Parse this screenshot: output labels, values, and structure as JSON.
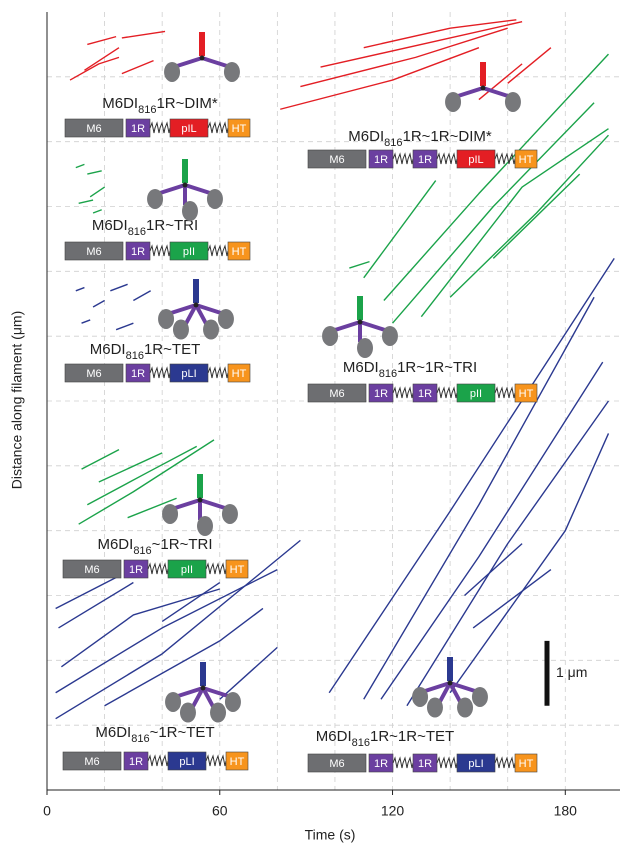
{
  "chart_data": {
    "type": "kymograph",
    "x_label": "Time (s)",
    "y_label": "Distance along filament (μm)",
    "xlim": [
      0,
      199
    ],
    "xticks": [
      0,
      60,
      120,
      180
    ],
    "minor_xticks": [
      20,
      40,
      80,
      100,
      140,
      160
    ],
    "ylim": [
      0,
      12
    ],
    "minor_yticks": [
      1,
      2,
      3,
      4,
      5,
      6,
      7,
      8,
      9,
      10,
      11
    ],
    "grid": true,
    "scale_bar": {
      "value": 1,
      "label": "1 μm"
    },
    "domain_colors": {
      "M6": "#6d6e71",
      "1R": "#6b3fa0",
      "pIL": "#e31e24",
      "pII": "#1ba34a",
      "pLI": "#2b3990",
      "HT": "#f7941d"
    },
    "constructs": [
      {
        "name_parts": [
          "M6DI",
          "816",
          "1R~DIM*"
        ],
        "domains": [
          "M6",
          "1R",
          "pIL",
          "HT"
        ]
      },
      {
        "name_parts": [
          "M6DI",
          "816",
          "1R~1R~DIM*"
        ],
        "domains": [
          "M6",
          "1R",
          "1R",
          "pIL",
          "HT"
        ]
      },
      {
        "name_parts": [
          "M6DI",
          "816",
          "1R~TRI"
        ],
        "domains": [
          "M6",
          "1R",
          "pII",
          "HT"
        ]
      },
      {
        "name_parts": [
          "M6DI",
          "816",
          "1R~TET"
        ],
        "domains": [
          "M6",
          "1R",
          "pLI",
          "HT"
        ]
      },
      {
        "name_parts": [
          "M6DI",
          "816",
          "1R~1R~TRI"
        ],
        "domains": [
          "M6",
          "1R",
          "1R",
          "pII",
          "HT"
        ]
      },
      {
        "name_parts": [
          "M6DI",
          "816",
          "~1R~TRI"
        ],
        "domains": [
          "M6",
          "1R",
          "pII",
          "HT"
        ]
      },
      {
        "name_parts": [
          "M6DI",
          "816",
          "~1R~TET"
        ],
        "domains": [
          "M6",
          "1R",
          "pLI",
          "HT"
        ]
      },
      {
        "name_parts": [
          "M6DI",
          "816",
          "1R~1R~TET"
        ],
        "domains": [
          "M6",
          "1R",
          "1R",
          "pLI",
          "HT"
        ]
      }
    ],
    "trace_groups": [
      {
        "color": "#e31e24",
        "traces": [
          {
            "x": [
              8,
              18,
              25
            ],
            "y": [
              10.95,
              11.2,
              11.3
            ]
          },
          {
            "x": [
              13,
              25
            ],
            "y": [
              11.1,
              11.45
            ]
          },
          {
            "x": [
              26,
              41
            ],
            "y": [
              11.6,
              11.7
            ]
          },
          {
            "x": [
              26,
              37
            ],
            "y": [
              11.05,
              11.25
            ]
          },
          {
            "x": [
              14,
              24
            ],
            "y": [
              11.5,
              11.62
            ]
          }
        ]
      },
      {
        "color": "#e31e24",
        "traces": [
          {
            "x": [
              81,
              120,
              150
            ],
            "y": [
              10.5,
              10.95,
              11.45
            ]
          },
          {
            "x": [
              88,
              128,
              160
            ],
            "y": [
              10.85,
              11.3,
              11.75
            ]
          },
          {
            "x": [
              95,
              135,
              165
            ],
            "y": [
              11.15,
              11.55,
              11.85
            ]
          },
          {
            "x": [
              110,
              140,
              163
            ],
            "y": [
              11.45,
              11.75,
              11.88
            ]
          },
          {
            "x": [
              150,
              165
            ],
            "y": [
              10.65,
              11.2
            ]
          },
          {
            "x": [
              160,
              175
            ],
            "y": [
              10.9,
              11.45
            ]
          }
        ]
      },
      {
        "color": "#1ba34a",
        "traces": [
          {
            "x": [
              10,
              13
            ],
            "y": [
              9.6,
              9.65
            ]
          },
          {
            "x": [
              14,
              19
            ],
            "y": [
              9.5,
              9.55
            ]
          },
          {
            "x": [
              11,
              16
            ],
            "y": [
              9.05,
              9.1
            ]
          },
          {
            "x": [
              15,
              20
            ],
            "y": [
              9.15,
              9.3
            ]
          },
          {
            "x": [
              16,
              19
            ],
            "y": [
              8.9,
              8.95
            ]
          }
        ]
      },
      {
        "color": "#2b3990",
        "traces": [
          {
            "x": [
              10,
              13
            ],
            "y": [
              7.7,
              7.75
            ]
          },
          {
            "x": [
              16,
              20
            ],
            "y": [
              7.45,
              7.55
            ]
          },
          {
            "x": [
              22,
              28
            ],
            "y": [
              7.7,
              7.8
            ]
          },
          {
            "x": [
              12,
              15
            ],
            "y": [
              7.2,
              7.25
            ]
          },
          {
            "x": [
              24,
              30
            ],
            "y": [
              7.1,
              7.2
            ]
          },
          {
            "x": [
              30,
              36
            ],
            "y": [
              7.55,
              7.7
            ]
          }
        ]
      },
      {
        "color": "#1ba34a",
        "traces": [
          {
            "x": [
              117,
              150,
              195
            ],
            "y": [
              7.55,
              9.2,
              11.35
            ]
          },
          {
            "x": [
              120,
              155,
              190
            ],
            "y": [
              7.2,
              9.0,
              10.6
            ]
          },
          {
            "x": [
              130,
              165,
              195
            ],
            "y": [
              7.3,
              9.3,
              10.2
            ]
          },
          {
            "x": [
              110,
              135
            ],
            "y": [
              7.9,
              9.4
            ]
          },
          {
            "x": [
              140,
              170,
              195
            ],
            "y": [
              7.6,
              8.9,
              10.1
            ]
          },
          {
            "x": [
              155,
              185
            ],
            "y": [
              8.2,
              9.5
            ]
          },
          {
            "x": [
              105,
              112
            ],
            "y": [
              8.05,
              8.15
            ]
          }
        ]
      },
      {
        "color": "#1ba34a",
        "traces": [
          {
            "x": [
              11,
              30,
              58
            ],
            "y": [
              4.1,
              4.6,
              5.4
            ]
          },
          {
            "x": [
              14,
              35,
              52
            ],
            "y": [
              4.4,
              4.9,
              5.3
            ]
          },
          {
            "x": [
              18,
              40
            ],
            "y": [
              4.75,
              5.2
            ]
          },
          {
            "x": [
              12,
              25
            ],
            "y": [
              4.95,
              5.25
            ]
          },
          {
            "x": [
              28,
              45
            ],
            "y": [
              4.2,
              4.5
            ]
          }
        ]
      },
      {
        "color": "#2b3990",
        "traces": [
          {
            "x": [
              3,
              40,
              88
            ],
            "y": [
              1.1,
              2.1,
              3.85
            ]
          },
          {
            "x": [
              3,
              40,
              80
            ],
            "y": [
              1.5,
              2.5,
              3.4
            ]
          },
          {
            "x": [
              5,
              30,
              60
            ],
            "y": [
              1.9,
              2.7,
              3.1
            ]
          },
          {
            "x": [
              4,
              30
            ],
            "y": [
              2.5,
              3.2
            ]
          },
          {
            "x": [
              3,
              25
            ],
            "y": [
              2.8,
              3.3
            ]
          },
          {
            "x": [
              20,
              60,
              75
            ],
            "y": [
              1.3,
              2.3,
              2.8
            ]
          },
          {
            "x": [
              60,
              80
            ],
            "y": [
              1.4,
              2.2
            ]
          },
          {
            "x": [
              40,
              60
            ],
            "y": [
              2.6,
              3.2
            ]
          }
        ]
      },
      {
        "color": "#2b3990",
        "traces": [
          {
            "x": [
              98,
              140,
              197
            ],
            "y": [
              1.5,
              4.3,
              8.2
            ]
          },
          {
            "x": [
              110,
              150,
              190
            ],
            "y": [
              1.4,
              4.4,
              7.6
            ]
          },
          {
            "x": [
              116,
              150,
              193
            ],
            "y": [
              1.4,
              3.6,
              6.6
            ]
          },
          {
            "x": [
              125,
              160,
              195
            ],
            "y": [
              1.3,
              3.8,
              6.0
            ]
          },
          {
            "x": [
              140,
              180,
              195
            ],
            "y": [
              1.5,
              4.0,
              5.5
            ]
          },
          {
            "x": [
              148,
              175
            ],
            "y": [
              2.5,
              3.4
            ]
          },
          {
            "x": [
              145,
              165
            ],
            "y": [
              3.0,
              3.8
            ]
          }
        ]
      }
    ]
  }
}
